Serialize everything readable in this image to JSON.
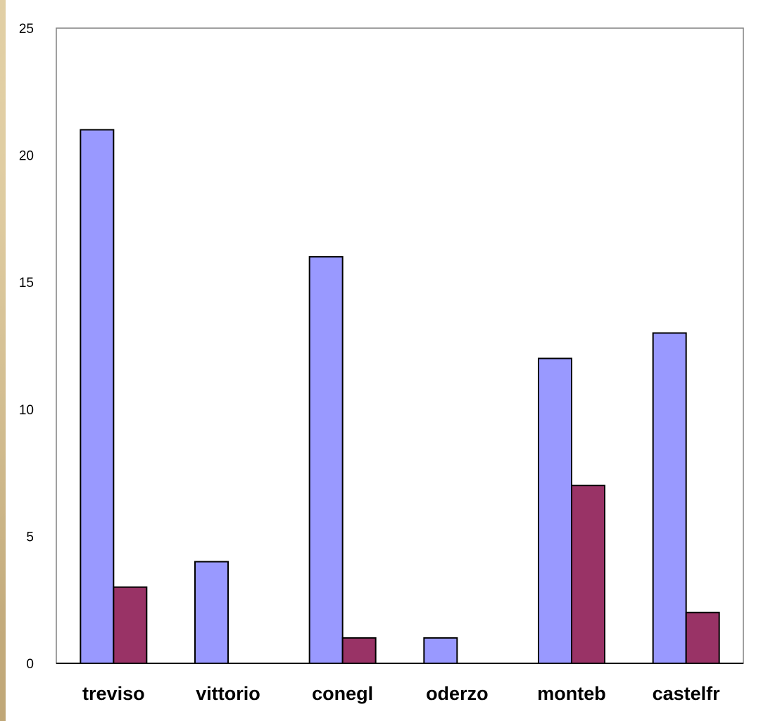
{
  "chart_data": {
    "type": "bar",
    "categories": [
      "treviso",
      "vittorio",
      "conegl",
      "oderzo",
      "monteb",
      "castelfr"
    ],
    "series": [
      {
        "values": [
          21,
          4,
          16,
          1,
          12,
          13
        ],
        "color": "#9999ff"
      },
      {
        "values": [
          3,
          0,
          1,
          0,
          7,
          2
        ],
        "color": "#993366"
      }
    ],
    "yticks": [
      "0",
      "5",
      "10",
      "15",
      "20",
      "25"
    ],
    "ylim": [
      0,
      25
    ],
    "xlabel": "",
    "ylabel": "",
    "title": "",
    "grid": false,
    "legend": "none"
  }
}
